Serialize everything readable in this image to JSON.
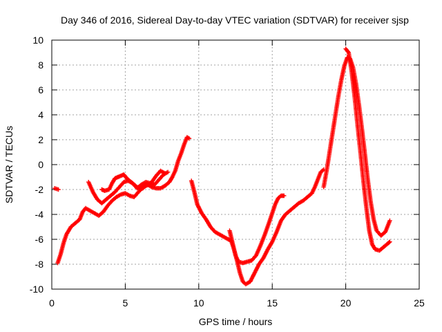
{
  "chart_data": {
    "type": "scatter",
    "title": "Day 346 of 2016, Sidereal Day-to-day VTEC variation (SDTVAR) for receiver sjsp",
    "xlabel": "GPS time / hours",
    "ylabel": "SDTVAR / TECUs",
    "xlim": [
      0,
      25
    ],
    "ylim": [
      -10,
      10
    ],
    "xticks": [
      0,
      5,
      10,
      15,
      20,
      25
    ],
    "yticks": [
      -10,
      -8,
      -6,
      -4,
      -2,
      0,
      2,
      4,
      6,
      8,
      10
    ],
    "grid": true,
    "marker": "plus",
    "color": "#ff0000",
    "series": [
      {
        "segments": [
          [
            [
              0.2,
              -1.9
            ],
            [
              0.45,
              -2.0
            ]
          ],
          [
            [
              0.4,
              -7.9
            ],
            [
              0.6,
              -7.2
            ],
            [
              0.8,
              -6.3
            ],
            [
              1.0,
              -5.6
            ],
            [
              1.3,
              -5.0
            ],
            [
              1.6,
              -4.7
            ],
            [
              1.9,
              -4.4
            ],
            [
              2.1,
              -3.8
            ],
            [
              2.3,
              -3.5
            ],
            [
              2.6,
              -3.7
            ],
            [
              2.9,
              -3.9
            ],
            [
              3.2,
              -4.1
            ],
            [
              3.5,
              -3.8
            ],
            [
              3.8,
              -3.3
            ],
            [
              4.1,
              -2.9
            ],
            [
              4.4,
              -2.6
            ],
            [
              4.7,
              -2.4
            ],
            [
              5.0,
              -2.3
            ],
            [
              5.3,
              -2.5
            ],
            [
              5.6,
              -2.6
            ],
            [
              5.9,
              -2.2
            ],
            [
              6.2,
              -1.8
            ],
            [
              6.5,
              -1.6
            ],
            [
              6.8,
              -1.8
            ],
            [
              7.1,
              -1.9
            ],
            [
              7.4,
              -1.9
            ],
            [
              7.7,
              -1.7
            ],
            [
              8.0,
              -1.4
            ],
            [
              8.2,
              -1.0
            ],
            [
              8.4,
              -0.5
            ],
            [
              8.6,
              0.3
            ],
            [
              8.8,
              0.9
            ],
            [
              9.0,
              1.6
            ],
            [
              9.2,
              2.2
            ],
            [
              9.35,
              2.1
            ]
          ],
          [
            [
              2.5,
              -1.4
            ],
            [
              2.8,
              -2.2
            ],
            [
              3.1,
              -2.8
            ],
            [
              3.4,
              -3.1
            ],
            [
              3.7,
              -2.8
            ],
            [
              4.0,
              -2.5
            ],
            [
              4.3,
              -2.2
            ],
            [
              4.6,
              -1.8
            ],
            [
              4.9,
              -1.4
            ],
            [
              5.2,
              -1.3
            ],
            [
              5.5,
              -1.5
            ],
            [
              5.8,
              -1.9
            ],
            [
              6.1,
              -1.6
            ],
            [
              6.4,
              -1.4
            ],
            [
              6.7,
              -1.5
            ],
            [
              7.0,
              -1.6
            ],
            [
              7.3,
              -1.2
            ],
            [
              7.6,
              -0.8
            ],
            [
              7.9,
              -0.6
            ]
          ],
          [
            [
              3.4,
              -2.0
            ],
            [
              3.6,
              -2.1
            ],
            [
              3.9,
              -2.0
            ],
            [
              4.1,
              -1.5
            ],
            [
              4.3,
              -1.1
            ],
            [
              4.5,
              -1.0
            ],
            [
              4.7,
              -0.9
            ],
            [
              4.9,
              -0.8
            ],
            [
              5.1,
              -1.1
            ],
            [
              5.4,
              -1.4
            ],
            [
              5.7,
              -1.7
            ],
            [
              6.0,
              -2.0
            ],
            [
              6.2,
              -1.9
            ],
            [
              6.4,
              -1.7
            ],
            [
              6.6,
              -1.6
            ],
            [
              6.8,
              -1.4
            ],
            [
              7.1,
              -0.9
            ],
            [
              7.4,
              -0.5
            ],
            [
              7.7,
              -0.7
            ]
          ],
          [
            [
              9.5,
              -1.3
            ],
            [
              9.7,
              -2.2
            ],
            [
              9.9,
              -3.2
            ],
            [
              10.2,
              -3.9
            ],
            [
              10.5,
              -4.4
            ],
            [
              10.8,
              -5.0
            ],
            [
              11.1,
              -5.4
            ],
            [
              11.4,
              -5.6
            ],
            [
              11.7,
              -5.8
            ],
            [
              12.0,
              -6.0
            ],
            [
              12.2,
              -6.1
            ],
            [
              12.4,
              -6.8
            ],
            [
              12.6,
              -7.7
            ],
            [
              12.8,
              -8.7
            ],
            [
              13.0,
              -9.4
            ],
            [
              13.2,
              -9.6
            ],
            [
              13.5,
              -9.4
            ],
            [
              13.8,
              -8.7
            ],
            [
              14.1,
              -8.0
            ],
            [
              14.4,
              -7.5
            ],
            [
              14.7,
              -6.8
            ],
            [
              15.0,
              -6.2
            ],
            [
              15.3,
              -5.4
            ],
            [
              15.6,
              -4.5
            ],
            [
              15.9,
              -4.0
            ],
            [
              16.2,
              -3.7
            ],
            [
              16.5,
              -3.4
            ],
            [
              16.8,
              -3.1
            ],
            [
              17.1,
              -2.9
            ],
            [
              17.4,
              -2.6
            ],
            [
              17.7,
              -2.3
            ],
            [
              17.9,
              -1.8
            ],
            [
              18.1,
              -1.2
            ],
            [
              18.3,
              -0.6
            ],
            [
              18.5,
              -0.4
            ]
          ],
          [
            [
              12.1,
              -5.3
            ],
            [
              12.3,
              -6.3
            ],
            [
              12.5,
              -7.3
            ],
            [
              12.7,
              -7.8
            ],
            [
              13.0,
              -7.9
            ],
            [
              13.3,
              -7.8
            ],
            [
              13.6,
              -7.7
            ],
            [
              13.9,
              -7.3
            ],
            [
              14.2,
              -6.5
            ],
            [
              14.5,
              -5.6
            ],
            [
              14.8,
              -4.6
            ],
            [
              15.0,
              -3.9
            ],
            [
              15.2,
              -3.2
            ],
            [
              15.4,
              -2.7
            ],
            [
              15.6,
              -2.5
            ],
            [
              15.8,
              -2.5
            ]
          ],
          [
            [
              18.5,
              -1.8
            ],
            [
              18.7,
              -0.5
            ],
            [
              18.9,
              1.0
            ],
            [
              19.1,
              2.5
            ],
            [
              19.3,
              4.0
            ],
            [
              19.5,
              5.5
            ],
            [
              19.7,
              6.8
            ],
            [
              19.9,
              7.9
            ],
            [
              20.1,
              8.6
            ],
            [
              20.3,
              8.5
            ],
            [
              20.5,
              7.8
            ],
            [
              20.7,
              6.5
            ],
            [
              20.9,
              4.8
            ],
            [
              21.1,
              2.9
            ],
            [
              21.3,
              0.9
            ],
            [
              21.5,
              -1.2
            ],
            [
              21.7,
              -3.0
            ],
            [
              21.9,
              -4.4
            ],
            [
              22.1,
              -5.3
            ],
            [
              22.4,
              -5.7
            ],
            [
              22.7,
              -5.4
            ],
            [
              22.9,
              -4.8
            ],
            [
              23.0,
              -4.5
            ]
          ],
          [
            [
              20.0,
              9.3
            ],
            [
              20.2,
              9.0
            ],
            [
              20.4,
              7.5
            ],
            [
              20.6,
              5.5
            ],
            [
              20.8,
              3.2
            ],
            [
              21.0,
              1.0
            ],
            [
              21.2,
              -1.3
            ],
            [
              21.4,
              -3.4
            ],
            [
              21.6,
              -5.3
            ],
            [
              21.8,
              -6.4
            ],
            [
              22.0,
              -6.8
            ],
            [
              22.3,
              -6.9
            ],
            [
              22.6,
              -6.6
            ],
            [
              22.9,
              -6.3
            ],
            [
              23.0,
              -6.2
            ]
          ]
        ]
      }
    ]
  }
}
